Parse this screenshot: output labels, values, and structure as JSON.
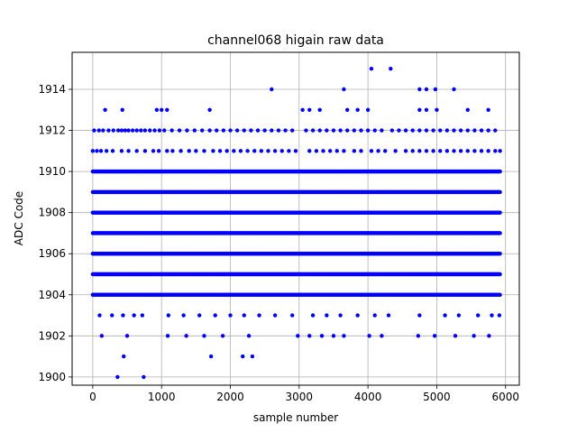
{
  "chart_data": {
    "type": "scatter",
    "title": "channel068 higain raw data",
    "xlabel": "sample number",
    "ylabel": "ADC Code",
    "xlim": [
      -300,
      6200
    ],
    "ylim": [
      1899.6,
      1915.8
    ],
    "xticks": [
      0,
      1000,
      2000,
      3000,
      4000,
      5000,
      6000
    ],
    "yticks": [
      1900,
      1902,
      1904,
      1906,
      1908,
      1910,
      1912,
      1914
    ],
    "grid": true,
    "legend": "none",
    "marker_color": "#0000ff",
    "series": [
      {
        "dense_levels": [
          1904,
          1905,
          1906,
          1907,
          1908,
          1909,
          1910
        ],
        "dense_x_range": [
          0,
          5920
        ],
        "dense_step": 10,
        "sparse_points": [
          {
            "x": 0,
            "y": 1911
          },
          {
            "x": 60,
            "y": 1911
          },
          {
            "x": 120,
            "y": 1911
          },
          {
            "x": 200,
            "y": 1911
          },
          {
            "x": 290,
            "y": 1911
          },
          {
            "x": 420,
            "y": 1911
          },
          {
            "x": 520,
            "y": 1911
          },
          {
            "x": 640,
            "y": 1911
          },
          {
            "x": 760,
            "y": 1911
          },
          {
            "x": 880,
            "y": 1911
          },
          {
            "x": 960,
            "y": 1911
          },
          {
            "x": 1080,
            "y": 1911
          },
          {
            "x": 1160,
            "y": 1911
          },
          {
            "x": 1280,
            "y": 1911
          },
          {
            "x": 1400,
            "y": 1911
          },
          {
            "x": 1500,
            "y": 1911
          },
          {
            "x": 1620,
            "y": 1911
          },
          {
            "x": 1750,
            "y": 1911
          },
          {
            "x": 1850,
            "y": 1911
          },
          {
            "x": 1950,
            "y": 1911
          },
          {
            "x": 2050,
            "y": 1911
          },
          {
            "x": 2150,
            "y": 1911
          },
          {
            "x": 2250,
            "y": 1911
          },
          {
            "x": 2350,
            "y": 1911
          },
          {
            "x": 2450,
            "y": 1911
          },
          {
            "x": 2550,
            "y": 1911
          },
          {
            "x": 2650,
            "y": 1911
          },
          {
            "x": 2750,
            "y": 1911
          },
          {
            "x": 2850,
            "y": 1911
          },
          {
            "x": 2950,
            "y": 1911
          },
          {
            "x": 3150,
            "y": 1911
          },
          {
            "x": 3250,
            "y": 1911
          },
          {
            "x": 3350,
            "y": 1911
          },
          {
            "x": 3450,
            "y": 1911
          },
          {
            "x": 3550,
            "y": 1911
          },
          {
            "x": 3650,
            "y": 1911
          },
          {
            "x": 3800,
            "y": 1911
          },
          {
            "x": 3900,
            "y": 1911
          },
          {
            "x": 4050,
            "y": 1911
          },
          {
            "x": 4150,
            "y": 1911
          },
          {
            "x": 4250,
            "y": 1911
          },
          {
            "x": 4400,
            "y": 1911
          },
          {
            "x": 4550,
            "y": 1911
          },
          {
            "x": 4650,
            "y": 1911
          },
          {
            "x": 4750,
            "y": 1911
          },
          {
            "x": 4850,
            "y": 1911
          },
          {
            "x": 4950,
            "y": 1911
          },
          {
            "x": 5050,
            "y": 1911
          },
          {
            "x": 5150,
            "y": 1911
          },
          {
            "x": 5250,
            "y": 1911
          },
          {
            "x": 5350,
            "y": 1911
          },
          {
            "x": 5450,
            "y": 1911
          },
          {
            "x": 5550,
            "y": 1911
          },
          {
            "x": 5650,
            "y": 1911
          },
          {
            "x": 5750,
            "y": 1911
          },
          {
            "x": 5850,
            "y": 1911
          },
          {
            "x": 5920,
            "y": 1911
          },
          {
            "x": 20,
            "y": 1912
          },
          {
            "x": 90,
            "y": 1912
          },
          {
            "x": 150,
            "y": 1912
          },
          {
            "x": 230,
            "y": 1912
          },
          {
            "x": 300,
            "y": 1912
          },
          {
            "x": 370,
            "y": 1912
          },
          {
            "x": 420,
            "y": 1912
          },
          {
            "x": 470,
            "y": 1912
          },
          {
            "x": 520,
            "y": 1912
          },
          {
            "x": 580,
            "y": 1912
          },
          {
            "x": 640,
            "y": 1912
          },
          {
            "x": 700,
            "y": 1912
          },
          {
            "x": 760,
            "y": 1912
          },
          {
            "x": 830,
            "y": 1912
          },
          {
            "x": 900,
            "y": 1912
          },
          {
            "x": 970,
            "y": 1912
          },
          {
            "x": 1040,
            "y": 1912
          },
          {
            "x": 1150,
            "y": 1912
          },
          {
            "x": 1260,
            "y": 1912
          },
          {
            "x": 1370,
            "y": 1912
          },
          {
            "x": 1480,
            "y": 1912
          },
          {
            "x": 1590,
            "y": 1912
          },
          {
            "x": 1700,
            "y": 1912
          },
          {
            "x": 1800,
            "y": 1912
          },
          {
            "x": 1900,
            "y": 1912
          },
          {
            "x": 2000,
            "y": 1912
          },
          {
            "x": 2100,
            "y": 1912
          },
          {
            "x": 2200,
            "y": 1912
          },
          {
            "x": 2300,
            "y": 1912
          },
          {
            "x": 2400,
            "y": 1912
          },
          {
            "x": 2500,
            "y": 1912
          },
          {
            "x": 2600,
            "y": 1912
          },
          {
            "x": 2700,
            "y": 1912
          },
          {
            "x": 2800,
            "y": 1912
          },
          {
            "x": 2900,
            "y": 1912
          },
          {
            "x": 3100,
            "y": 1912
          },
          {
            "x": 3200,
            "y": 1912
          },
          {
            "x": 3300,
            "y": 1912
          },
          {
            "x": 3400,
            "y": 1912
          },
          {
            "x": 3500,
            "y": 1912
          },
          {
            "x": 3600,
            "y": 1912
          },
          {
            "x": 3700,
            "y": 1912
          },
          {
            "x": 3800,
            "y": 1912
          },
          {
            "x": 3900,
            "y": 1912
          },
          {
            "x": 4000,
            "y": 1912
          },
          {
            "x": 4100,
            "y": 1912
          },
          {
            "x": 4200,
            "y": 1912
          },
          {
            "x": 4350,
            "y": 1912
          },
          {
            "x": 4450,
            "y": 1912
          },
          {
            "x": 4550,
            "y": 1912
          },
          {
            "x": 4650,
            "y": 1912
          },
          {
            "x": 4750,
            "y": 1912
          },
          {
            "x": 4850,
            "y": 1912
          },
          {
            "x": 4950,
            "y": 1912
          },
          {
            "x": 5050,
            "y": 1912
          },
          {
            "x": 5150,
            "y": 1912
          },
          {
            "x": 5250,
            "y": 1912
          },
          {
            "x": 5350,
            "y": 1912
          },
          {
            "x": 5450,
            "y": 1912
          },
          {
            "x": 5550,
            "y": 1912
          },
          {
            "x": 5650,
            "y": 1912
          },
          {
            "x": 5750,
            "y": 1912
          },
          {
            "x": 5850,
            "y": 1912
          },
          {
            "x": 180,
            "y": 1913
          },
          {
            "x": 430,
            "y": 1913
          },
          {
            "x": 930,
            "y": 1913
          },
          {
            "x": 1000,
            "y": 1913
          },
          {
            "x": 1080,
            "y": 1913
          },
          {
            "x": 1700,
            "y": 1913
          },
          {
            "x": 3050,
            "y": 1913
          },
          {
            "x": 3150,
            "y": 1913
          },
          {
            "x": 3300,
            "y": 1913
          },
          {
            "x": 3700,
            "y": 1913
          },
          {
            "x": 3850,
            "y": 1913
          },
          {
            "x": 4000,
            "y": 1913
          },
          {
            "x": 4750,
            "y": 1913
          },
          {
            "x": 4850,
            "y": 1913
          },
          {
            "x": 5000,
            "y": 1913
          },
          {
            "x": 5450,
            "y": 1913
          },
          {
            "x": 5750,
            "y": 1913
          },
          {
            "x": 2600,
            "y": 1914
          },
          {
            "x": 3650,
            "y": 1914
          },
          {
            "x": 4750,
            "y": 1914
          },
          {
            "x": 4850,
            "y": 1914
          },
          {
            "x": 4980,
            "y": 1914
          },
          {
            "x": 5250,
            "y": 1914
          },
          {
            "x": 4050,
            "y": 1915
          },
          {
            "x": 4330,
            "y": 1915
          },
          {
            "x": 100,
            "y": 1903
          },
          {
            "x": 280,
            "y": 1903
          },
          {
            "x": 440,
            "y": 1903
          },
          {
            "x": 600,
            "y": 1903
          },
          {
            "x": 720,
            "y": 1903
          },
          {
            "x": 1100,
            "y": 1903
          },
          {
            "x": 1320,
            "y": 1903
          },
          {
            "x": 1550,
            "y": 1903
          },
          {
            "x": 1780,
            "y": 1903
          },
          {
            "x": 2000,
            "y": 1903
          },
          {
            "x": 2200,
            "y": 1903
          },
          {
            "x": 2420,
            "y": 1903
          },
          {
            "x": 2650,
            "y": 1903
          },
          {
            "x": 2900,
            "y": 1903
          },
          {
            "x": 3200,
            "y": 1903
          },
          {
            "x": 3400,
            "y": 1903
          },
          {
            "x": 3600,
            "y": 1903
          },
          {
            "x": 3850,
            "y": 1903
          },
          {
            "x": 4100,
            "y": 1903
          },
          {
            "x": 4300,
            "y": 1903
          },
          {
            "x": 4750,
            "y": 1903
          },
          {
            "x": 5120,
            "y": 1903
          },
          {
            "x": 5320,
            "y": 1903
          },
          {
            "x": 5600,
            "y": 1903
          },
          {
            "x": 5800,
            "y": 1903
          },
          {
            "x": 5910,
            "y": 1903
          },
          {
            "x": 130,
            "y": 1902
          },
          {
            "x": 500,
            "y": 1902
          },
          {
            "x": 1090,
            "y": 1902
          },
          {
            "x": 1360,
            "y": 1902
          },
          {
            "x": 1620,
            "y": 1902
          },
          {
            "x": 1890,
            "y": 1902
          },
          {
            "x": 2270,
            "y": 1902
          },
          {
            "x": 2980,
            "y": 1902
          },
          {
            "x": 3150,
            "y": 1902
          },
          {
            "x": 3330,
            "y": 1902
          },
          {
            "x": 3500,
            "y": 1902
          },
          {
            "x": 3650,
            "y": 1902
          },
          {
            "x": 4020,
            "y": 1902
          },
          {
            "x": 4200,
            "y": 1902
          },
          {
            "x": 4730,
            "y": 1902
          },
          {
            "x": 4970,
            "y": 1902
          },
          {
            "x": 5270,
            "y": 1902
          },
          {
            "x": 5540,
            "y": 1902
          },
          {
            "x": 5760,
            "y": 1902
          },
          {
            "x": 450,
            "y": 1901
          },
          {
            "x": 1720,
            "y": 1901
          },
          {
            "x": 2180,
            "y": 1901
          },
          {
            "x": 2320,
            "y": 1901
          },
          {
            "x": 360,
            "y": 1900
          },
          {
            "x": 740,
            "y": 1900
          }
        ]
      }
    ]
  }
}
